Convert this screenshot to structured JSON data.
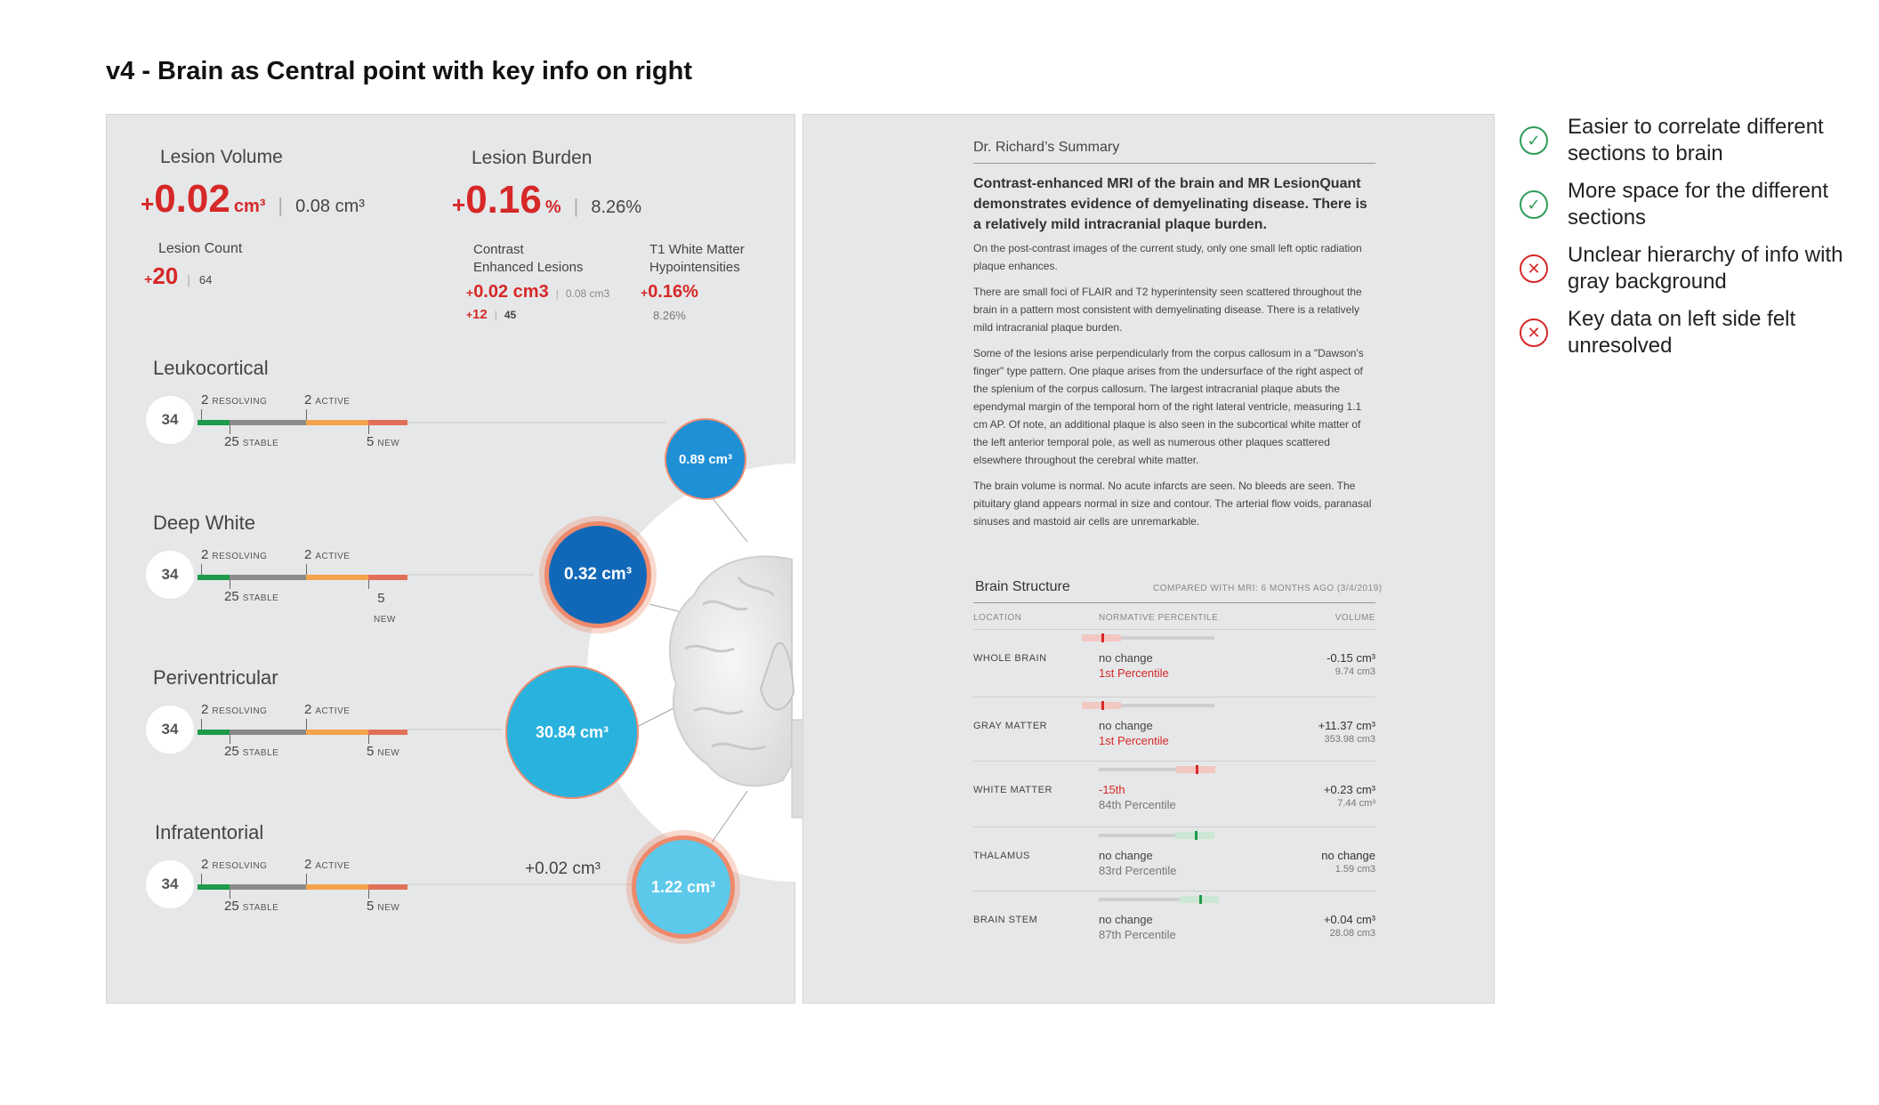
{
  "title": "v4 - Brain as Central point with key info on right",
  "stats": {
    "lesion_volume": {
      "label": "Lesion Volume",
      "change": "0.02",
      "unit": "cm³",
      "total": "0.08 cm³"
    },
    "lesion_burden": {
      "label": "Lesion Burden",
      "change": "0.16",
      "unit": "%",
      "total": "8.26%"
    },
    "lesion_count": {
      "label": "Lesion Count",
      "change": "20",
      "total": "64"
    },
    "contrast": {
      "label_line1": "Contrast",
      "label_line2": "Enhanced Lesions",
      "change": "0.02 cm3",
      "total": "0.08 cm3",
      "count_change": "12",
      "count_total": "45"
    },
    "t1": {
      "label_line1": "T1 White Matter",
      "label_line2": "Hypointensities",
      "change": "0.16%",
      "total": "8.26%"
    }
  },
  "plus_sign": "+",
  "sections": [
    {
      "title": "Leukocortical",
      "count": "34",
      "resolving": "2",
      "active": "2",
      "stable": "25",
      "new": "5",
      "bubble": "0.89 cm³"
    },
    {
      "title": "Deep White",
      "count": "34",
      "resolving": "2",
      "active": "2",
      "stable": "25",
      "new": "5",
      "bubble": "0.32 cm³"
    },
    {
      "title": "Periventricular",
      "count": "34",
      "resolving": "2",
      "active": "2",
      "stable": "25",
      "new": "5",
      "bubble": "30.84 cm³"
    },
    {
      "title": "Infratentorial",
      "count": "34",
      "resolving": "2",
      "active": "2",
      "stable": "25",
      "new": "5",
      "bubble": "1.22 cm³",
      "extra": "+0.02 cm³"
    }
  ],
  "bar_labels": {
    "resolving": "RESOLVING",
    "active": "ACTIVE",
    "stable": "STABLE",
    "new": "NEW"
  },
  "colors": {
    "resolving": "#1e9a4b",
    "stable": "#8a8a8a",
    "active": "#f4a24c",
    "new": "#e07058",
    "red": "#d62828",
    "check": "#2f9d5a"
  },
  "summary": {
    "header": "Dr. Richard’s Summary",
    "bold": "Contrast-enhanced MRI of the brain and MR LesionQuant demonstrates evidence of demyelinating disease. There is a relatively mild intracranial plaque burden.",
    "paragraphs": [
      "On the post-contrast images of the current study, only one small left optic radiation plaque enhances.",
      "There are small foci of FLAIR and T2 hyperintensity seen scattered throughout the brain in a pattern most consistent with demyelinating disease. There is a relatively mild intracranial plaque burden.",
      "Some of the lesions arise perpendicularly from the corpus callosum in a \"Dawson's finger\" type pattern. One plaque arises from the undersurface of the right aspect of the splenium of the corpus callosum. The largest intracranial plaque abuts the ependymal margin of the temporal horn of the right lateral ventricle, measuring 1.1 cm AP. Of note, an additional plaque is also seen in the subcortical white matter of the left anterior temporal pole, as well as numerous other plaques scattered elsewhere throughout the cerebral white matter.",
      "The brain volume is normal. No acute infarcts are seen. No bleeds are seen. The pituitary gland appears normal in size and contour. The arterial flow voids, paranasal sinuses and mastoid air cells are unremarkable."
    ]
  },
  "brain_structure": {
    "title": "Brain Structure",
    "compared": "COMPARED WITH MRI: 6 MONTHS AGO (3/4/2019)",
    "headers": {
      "location": "LOCATION",
      "normative": "NORMATIVE PERCENTILE",
      "volume": "VOLUME"
    },
    "rows": [
      {
        "location": "WHOLE BRAIN",
        "change": "no change",
        "percentile": "1st Percentile",
        "pct_red": true,
        "volume": "-0.15 cm³",
        "volume_total": "9.74 cm3",
        "marker": 0.02,
        "marker_color": "#d62828"
      },
      {
        "location": "GRAY MATTER",
        "change": "no change",
        "percentile": "1st Percentile",
        "pct_red": true,
        "volume": "+11.37 cm³",
        "volume_total": "353.98 cm3",
        "marker": 0.02,
        "marker_color": "#d62828"
      },
      {
        "location": "WHITE MATTER",
        "change": "-15th",
        "change_red": true,
        "percentile": "84th Percentile",
        "pct_red": false,
        "volume": "+0.23 cm³",
        "volume_total": "7.44 cm³",
        "marker": 0.84,
        "marker_color": "#d62828"
      },
      {
        "location": "THALAMUS",
        "change": "no change",
        "percentile": "83rd Percentile",
        "pct_red": false,
        "volume": "no change",
        "volume_total": "1.59 cm3",
        "marker": 0.83,
        "marker_color": "#1e9a4b"
      },
      {
        "location": "BRAIN STEM",
        "change": "no change",
        "percentile": "87th Percentile",
        "pct_red": false,
        "volume": "+0.04 cm³",
        "volume_total": "28.08 cm3",
        "marker": 0.87,
        "marker_color": "#1e9a4b"
      }
    ]
  },
  "notes": [
    {
      "type": "positive",
      "text": "Easier to correlate different sections to brain",
      "symbol": "✓"
    },
    {
      "type": "positive",
      "text": "More space for the different sections",
      "symbol": "✓"
    },
    {
      "type": "negative",
      "text": "Unclear hierarchy of info with gray background",
      "symbol": "✕"
    },
    {
      "type": "negative",
      "text": "Key data on left side felt unresolved",
      "symbol": "✕"
    }
  ]
}
